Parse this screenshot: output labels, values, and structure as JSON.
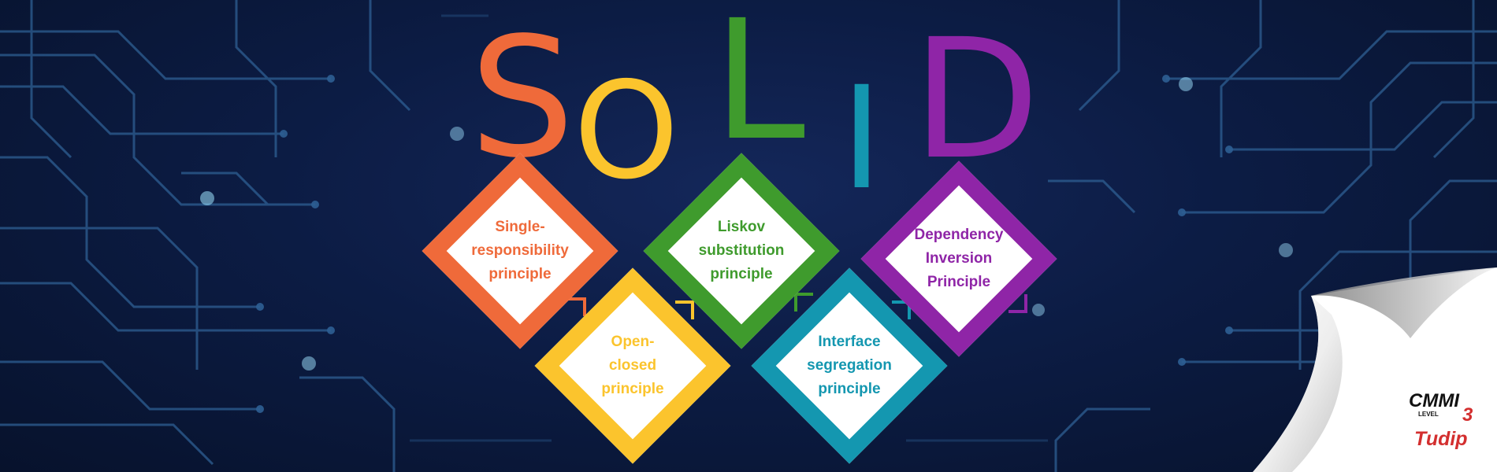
{
  "title_letters": [
    {
      "char": "S",
      "color": "#ef6a3a"
    },
    {
      "char": "O",
      "color": "#fbc42d"
    },
    {
      "char": "L",
      "color": "#3f9b2d"
    },
    {
      "char": "I",
      "color": "#1497b0"
    },
    {
      "char": "D",
      "color": "#8f25a7"
    }
  ],
  "principles": [
    {
      "lines": [
        "Single-",
        "responsibility",
        "principle"
      ],
      "color": "#ef6a3a"
    },
    {
      "lines": [
        "Open-",
        "closed",
        "principle"
      ],
      "color": "#fbc42d"
    },
    {
      "lines": [
        "Liskov",
        "substitution",
        "principle"
      ],
      "color": "#3f9b2d"
    },
    {
      "lines": [
        "Interface",
        "segregation",
        "principle"
      ],
      "color": "#1497b0"
    },
    {
      "lines": [
        "Dependency",
        "Inversion",
        "Principle"
      ],
      "color": "#8f25a7"
    }
  ],
  "logo": {
    "cmmi": "CMMI",
    "level_label": "LEVEL",
    "level_number": "3",
    "brand": "Tudip",
    "brand_color": "#d32f2f"
  }
}
